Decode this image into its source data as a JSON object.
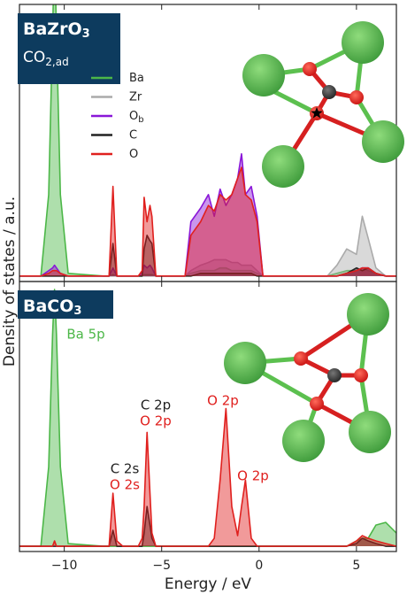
{
  "chart_data": [
    {
      "type": "area",
      "label": {
        "text": "BaZrO",
        "sub": "3"
      },
      "sublabel": {
        "text": "CO",
        "sub": "2,ad"
      },
      "xlim": [
        -12.3,
        7.05
      ],
      "ylim": [
        -0.2,
        10
      ],
      "xticks": [
        {
          "value": -10,
          "label": "−10"
        },
        {
          "value": -5,
          "label": "−5"
        },
        {
          "value": 0,
          "label": "0"
        },
        {
          "value": 5,
          "label": "5"
        }
      ],
      "x": [
        -12.3,
        -11.2,
        -10.8,
        -10.6,
        -10.5,
        -10.4,
        -10.2,
        -9.8,
        -8,
        -7.7,
        -7.5,
        -7.3,
        -7,
        -6.2,
        -6,
        -5.9,
        -5.75,
        -5.6,
        -5.5,
        -5.3,
        -5,
        -3.8,
        -3.5,
        -3,
        -2.6,
        -2.3,
        -2,
        -1.7,
        -1.4,
        -1.1,
        -0.9,
        -0.7,
        -0.4,
        -0.1,
        0.2,
        1,
        3.5,
        4,
        4.5,
        5,
        5.3,
        5.6,
        6,
        6.5,
        7.05
      ],
      "legend": true,
      "series": [
        {
          "name": "Ba",
          "color": "#4cb748",
          "values": [
            0,
            0,
            3,
            9,
            12,
            9,
            3,
            0.1,
            0,
            0,
            0.05,
            0,
            0,
            0,
            0,
            0.05,
            0.05,
            0.05,
            0.05,
            0,
            0,
            0,
            0.1,
            0.2,
            0.2,
            0.2,
            0.3,
            0.3,
            0.2,
            0.2,
            0.2,
            0.2,
            0.2,
            0.1,
            0,
            0,
            0,
            0.1,
            0.2,
            0.2,
            0.3,
            0.2,
            0.1,
            0,
            0
          ]
        },
        {
          "name": "Zr",
          "color": "#aaaaaa",
          "values": [
            0,
            0,
            0,
            0,
            0,
            0,
            0,
            0,
            0,
            0,
            0,
            0,
            0,
            0,
            0,
            0,
            0,
            0,
            0,
            0,
            0,
            0,
            0.2,
            0.4,
            0.5,
            0.6,
            0.6,
            0.6,
            0.5,
            0.5,
            0.4,
            0.4,
            0.4,
            0.2,
            0,
            0,
            0,
            0.4,
            1.0,
            0.8,
            2.2,
            1.4,
            0.3,
            0,
            0
          ]
        },
        {
          "name": "O",
          "name_sub": "b",
          "color": "#8a17d8",
          "values": [
            0,
            0,
            0.2,
            0.3,
            0.4,
            0.3,
            0.1,
            0,
            0,
            0,
            0.3,
            0,
            0,
            0,
            0.1,
            0.4,
            0.3,
            0.4,
            0.3,
            0,
            0,
            0,
            2.0,
            2.5,
            3.0,
            2.2,
            3.2,
            2.6,
            3.0,
            3.6,
            4.5,
            3.0,
            3.3,
            2.2,
            0,
            0,
            0,
            0,
            0.1,
            0.2,
            0.3,
            0.3,
            0.1,
            0,
            0
          ]
        },
        {
          "name": "C",
          "color": "#222222",
          "values": [
            0,
            0,
            0,
            0,
            0,
            0,
            0,
            0,
            0,
            0,
            1.2,
            0,
            0,
            0,
            0,
            1.0,
            1.5,
            1.3,
            1.2,
            0,
            0,
            0,
            0,
            0.1,
            0.1,
            0.1,
            0.1,
            0.1,
            0.1,
            0.1,
            0.1,
            0.1,
            0.1,
            0,
            0,
            0,
            0,
            0,
            0.1,
            0.3,
            0.2,
            0.3,
            0.1,
            0,
            0
          ]
        },
        {
          "name": "O",
          "color": "#e0201e",
          "values": [
            0,
            0,
            0.1,
            0.2,
            0.2,
            0.2,
            0.1,
            0,
            0,
            0,
            3.3,
            0,
            0,
            0,
            0.2,
            2.9,
            2.0,
            2.6,
            2.2,
            0,
            0,
            0,
            1.5,
            2.0,
            2.6,
            2.4,
            3.0,
            2.8,
            3.0,
            3.6,
            4.0,
            3.0,
            2.8,
            2.0,
            0,
            0,
            0,
            0,
            0.1,
            0.2,
            0.3,
            0.3,
            0.1,
            0,
            0
          ]
        }
      ]
    },
    {
      "type": "area",
      "label": {
        "text": "BaCO",
        "sub": "3"
      },
      "xlim": [
        -12.3,
        7.05
      ],
      "ylim": [
        -0.2,
        10
      ],
      "xticks": [
        {
          "value": -10,
          "label": "−10"
        },
        {
          "value": -5,
          "label": "−5"
        },
        {
          "value": 0,
          "label": "0"
        },
        {
          "value": 5,
          "label": "5"
        }
      ],
      "x": [
        -12.3,
        -11.2,
        -10.8,
        -10.6,
        -10.5,
        -10.4,
        -10.2,
        -9.8,
        -8,
        -7.7,
        -7.5,
        -7.3,
        -7,
        -6.2,
        -6,
        -5.9,
        -5.75,
        -5.6,
        -5.5,
        -5.3,
        -5,
        -3.8,
        -3.5,
        -3,
        -2.6,
        -2.3,
        -2,
        -1.7,
        -1.4,
        -1.1,
        -0.9,
        -0.7,
        -0.4,
        -0.1,
        0.2,
        1,
        3.5,
        4,
        4.5,
        5,
        5.3,
        5.6,
        6,
        6.5,
        7.05
      ],
      "xlabel": "Energy / eV",
      "ylabel": "Density of states / a.u.",
      "series": [
        {
          "name": "Ba",
          "color": "#4cb748",
          "values": [
            0,
            0,
            3,
            8,
            9.7,
            8,
            3,
            0.1,
            0,
            0,
            0,
            0,
            0,
            0,
            0,
            0,
            0,
            0,
            0,
            0,
            0,
            0,
            0,
            0,
            0,
            0,
            0,
            0,
            0,
            0,
            0,
            0,
            0,
            0,
            0,
            0,
            0,
            0,
            0,
            0.2,
            0.3,
            0.3,
            0.8,
            0.9,
            0.5
          ]
        },
        {
          "name": "C",
          "color": "#222222",
          "values": [
            0,
            0,
            0,
            0,
            0,
            0,
            0,
            0,
            0,
            0,
            0.6,
            0,
            0,
            0,
            0,
            0.5,
            1.5,
            0.8,
            0.3,
            0,
            0,
            0,
            0,
            0,
            0,
            0,
            0,
            0,
            0,
            0,
            0,
            0,
            0,
            0,
            0,
            0,
            0,
            0,
            0,
            0.1,
            0.3,
            0.2,
            0.1,
            0,
            0
          ]
        },
        {
          "name": "O",
          "color": "#e0201e",
          "values": [
            0,
            0,
            0,
            0,
            0.2,
            0,
            0,
            0,
            0,
            0,
            2.0,
            0.2,
            0,
            0,
            0.3,
            1.5,
            4.3,
            2.0,
            0.5,
            0,
            0,
            0,
            0,
            0,
            0,
            0.3,
            2.5,
            5.2,
            1.5,
            0.4,
            1.5,
            2.5,
            0.3,
            0,
            0,
            0,
            0,
            0,
            0,
            0.2,
            0.4,
            0.3,
            0.2,
            0.1,
            0
          ]
        }
      ],
      "annotations": [
        {
          "text": "Ba 5p",
          "color": "#4cb748"
        },
        {
          "text": "C 2s",
          "color": "#222222"
        },
        {
          "text": "O 2s",
          "color": "#e0201e"
        },
        {
          "text": "C 2p",
          "color": "#222222"
        },
        {
          "text": "O 2p",
          "color": "#e0201e"
        },
        {
          "text": "O 2p",
          "color": "#e0201e"
        },
        {
          "text": "O 2p",
          "color": "#e0201e"
        }
      ]
    }
  ]
}
